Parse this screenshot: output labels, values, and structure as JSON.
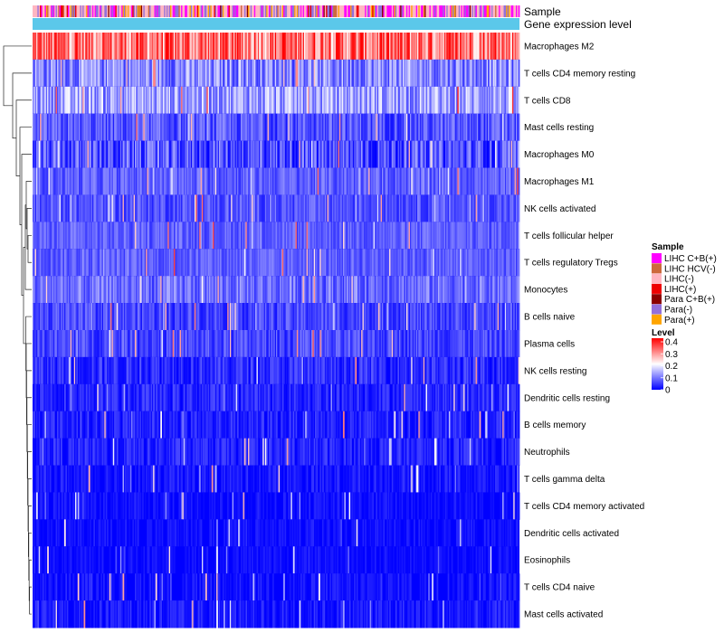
{
  "chart_data": {
    "type": "heatmap",
    "annotation_tracks": [
      "Sample",
      "Gene expression level"
    ],
    "rows": [
      {
        "label": "Macrophages M2",
        "mean": 0.3,
        "spread": 0.11
      },
      {
        "label": "T cells CD4 memory resting",
        "mean": 0.1,
        "spread": 0.07
      },
      {
        "label": "T cells CD8",
        "mean": 0.12,
        "spread": 0.07
      },
      {
        "label": "Mast cells resting",
        "mean": 0.06,
        "spread": 0.05
      },
      {
        "label": "Macrophages M0",
        "mean": 0.05,
        "spread": 0.07
      },
      {
        "label": "Macrophages M1",
        "mean": 0.07,
        "spread": 0.04
      },
      {
        "label": "NK cells activated",
        "mean": 0.06,
        "spread": 0.04
      },
      {
        "label": "T cells follicular helper",
        "mean": 0.07,
        "spread": 0.035
      },
      {
        "label": "T cells regulatory  Tregs",
        "mean": 0.07,
        "spread": 0.035
      },
      {
        "label": "Monocytes",
        "mean": 0.08,
        "spread": 0.05
      },
      {
        "label": "B cells naive",
        "mean": 0.05,
        "spread": 0.04
      },
      {
        "label": "Plasma cells",
        "mean": 0.05,
        "spread": 0.04
      },
      {
        "label": "NK cells resting",
        "mean": 0.03,
        "spread": 0.04
      },
      {
        "label": "Dendritic cells resting",
        "mean": 0.025,
        "spread": 0.035
      },
      {
        "label": "B cells memory",
        "mean": 0.02,
        "spread": 0.035
      },
      {
        "label": "Neutrophils",
        "mean": 0.02,
        "spread": 0.035
      },
      {
        "label": "T cells gamma delta",
        "mean": 0.01,
        "spread": 0.03
      },
      {
        "label": "T cells CD4 memory activated",
        "mean": 0.005,
        "spread": 0.025
      },
      {
        "label": "Dendritic cells activated",
        "mean": 0.005,
        "spread": 0.025
      },
      {
        "label": "Eosinophils",
        "mean": 0.005,
        "spread": 0.02
      },
      {
        "label": "T cells CD4 naive",
        "mean": 0.005,
        "spread": 0.03
      },
      {
        "label": "Mast cells activated",
        "mean": 0.01,
        "spread": 0.035
      }
    ],
    "n_columns": 400,
    "color_scale": {
      "min": 0,
      "max": 0.4,
      "colors": [
        "#0000ff",
        "#ffffff",
        "#ff0000"
      ]
    },
    "sample_legend": {
      "title": "Sample",
      "items": [
        {
          "label": "LIHC C+B(+)",
          "color": "#ff00ff"
        },
        {
          "label": "LIHC HCV(-)",
          "color": "#cd6a3c"
        },
        {
          "label": "LIHC(-)",
          "color": "#ffb6c1"
        },
        {
          "label": "LIHC(+)",
          "color": "#ee0000"
        },
        {
          "label": "Para C+B(+)",
          "color": "#8b0000"
        },
        {
          "label": "Para(-)",
          "color": "#9370db"
        },
        {
          "label": "Para(+)",
          "color": "#ffa500"
        }
      ]
    },
    "level_legend": {
      "title": "Level",
      "ticks": [
        "0.4",
        "0.3",
        "0.2",
        "0.1",
        "0"
      ]
    },
    "gene_expression_color": "#5bc8ea"
  }
}
